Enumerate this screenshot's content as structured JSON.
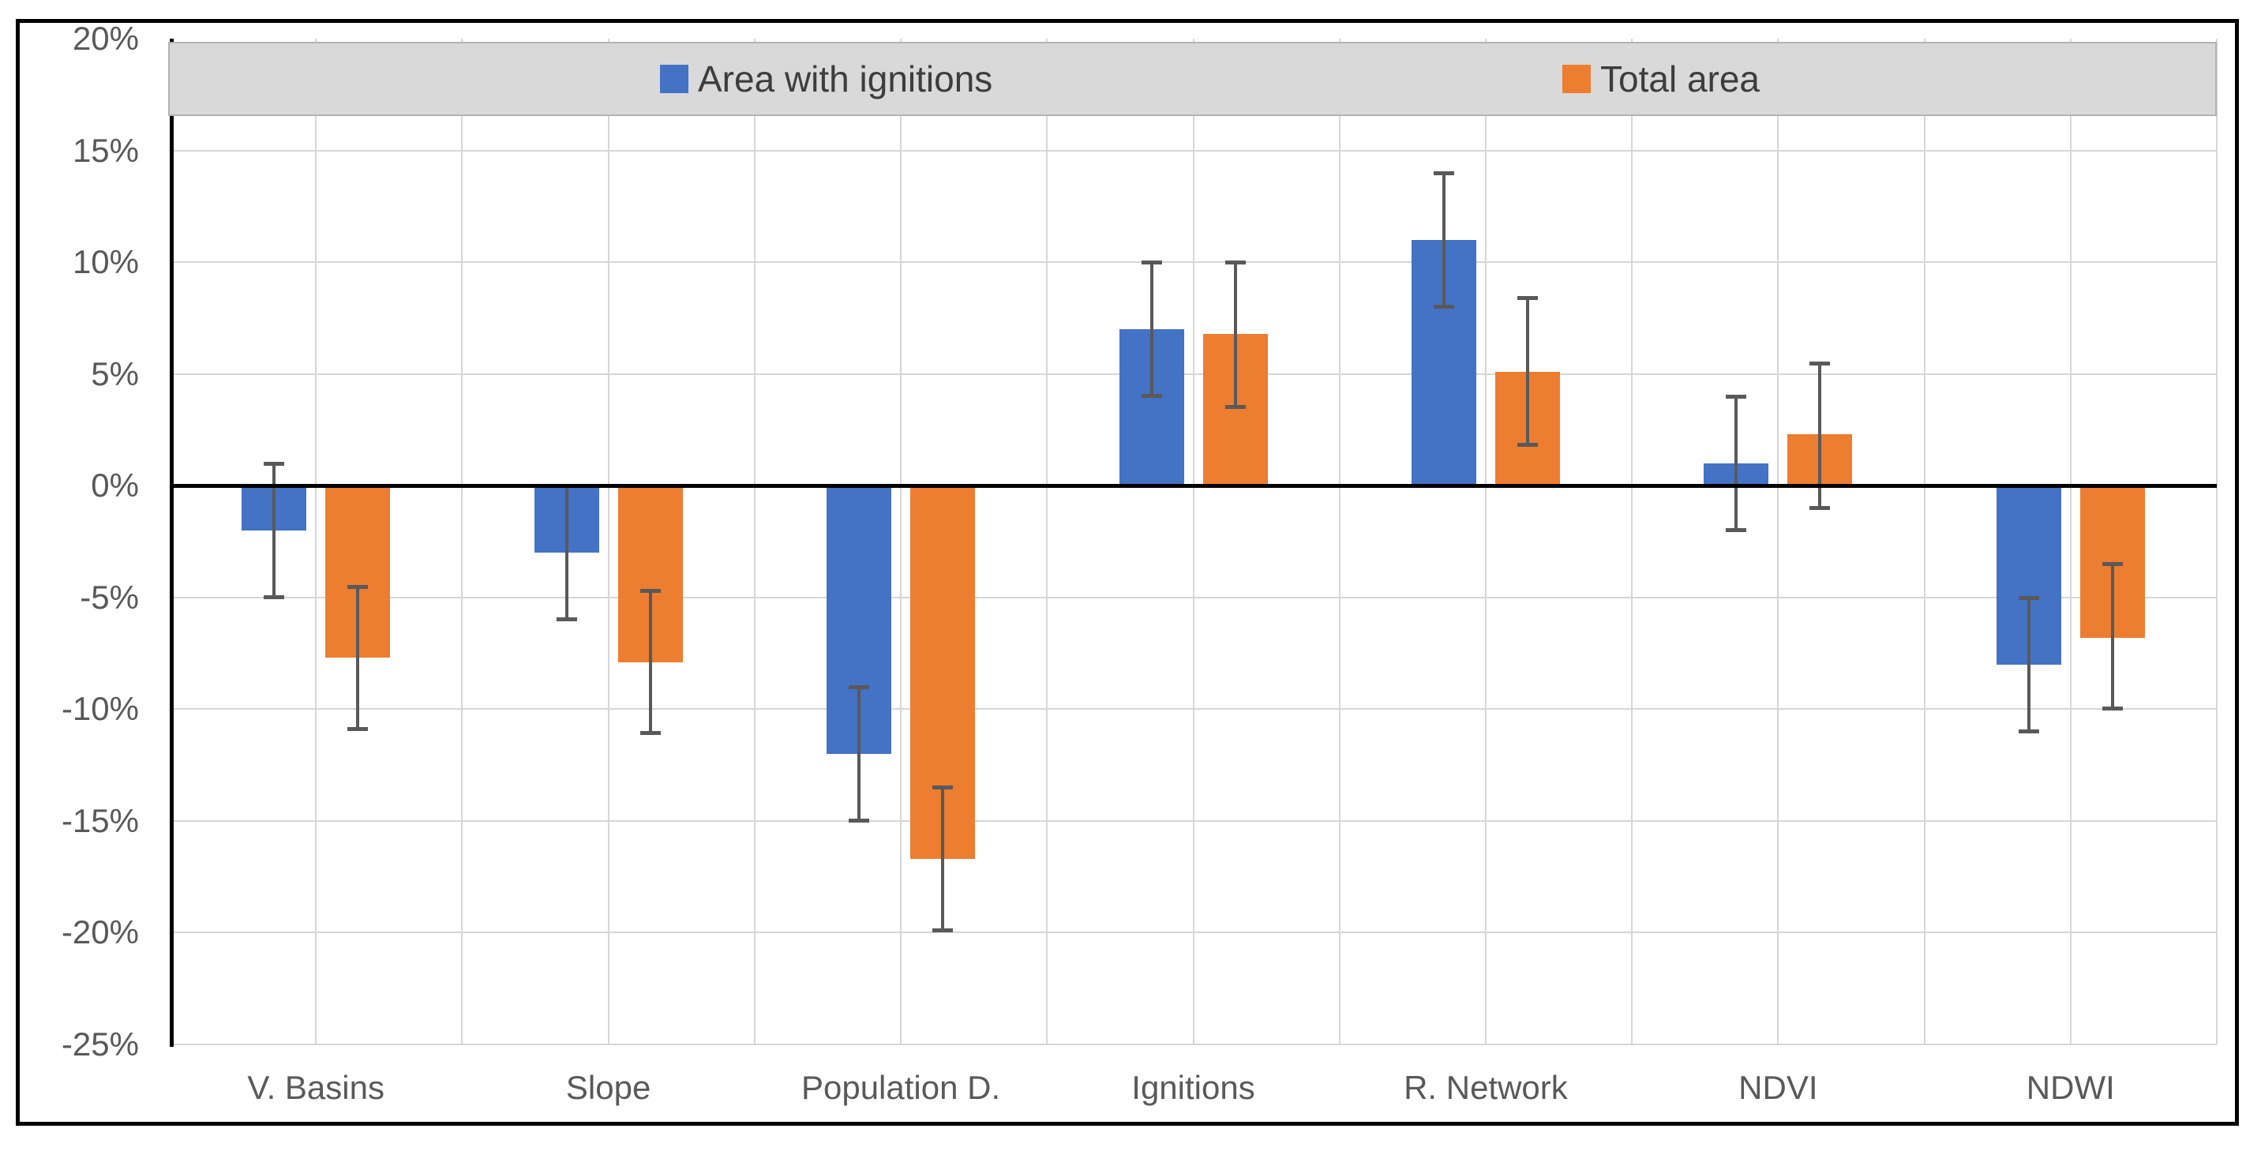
{
  "figure": {
    "border_color": "#000000",
    "background": "#ffffff"
  },
  "legend": {
    "background": "#d9d9d9",
    "items": [
      {
        "label": "Area with ignitions",
        "color": "#4472c4"
      },
      {
        "label": "Total area",
        "color": "#ed7d31"
      }
    ]
  },
  "axis": {
    "tick_labels": [
      "20%",
      "15%",
      "10%",
      "5%",
      "0%",
      "-5%",
      "-10%",
      "-15%",
      "-20%",
      "-25%"
    ],
    "label_color": "#595959",
    "gridline_color": "#d6d6d6",
    "axis_line_color": "#000000",
    "error_bar_color": "#595959"
  },
  "chart_data": {
    "type": "bar",
    "title": "",
    "xlabel": "",
    "ylabel": "",
    "tick_format": "percent",
    "ylim": [
      -25,
      20
    ],
    "y_ticks": [
      20,
      15,
      10,
      5,
      0,
      -5,
      -10,
      -15,
      -20,
      -25
    ],
    "grid": true,
    "legend_position": "top",
    "categories": [
      "V. Basins",
      "Slope",
      "Population D.",
      "Ignitions",
      "R. Network",
      "NDVI",
      "NDWI"
    ],
    "series": [
      {
        "name": "Area with ignitions",
        "color": "#4472c4",
        "values": [
          -2,
          -3,
          -12,
          7,
          11,
          1,
          -8
        ],
        "error_high": [
          1,
          0,
          -9,
          10,
          14,
          4,
          -5
        ],
        "error_low": [
          -5,
          -6,
          -15,
          4,
          8,
          -2,
          -11
        ]
      },
      {
        "name": "Total area",
        "color": "#ed7d31",
        "values": [
          -7.7,
          -7.9,
          -16.7,
          6.8,
          5.1,
          2.3,
          -6.8
        ],
        "error_high": [
          -4.5,
          -4.7,
          -13.5,
          10,
          8.4,
          5.5,
          -3.5
        ],
        "error_low": [
          -10.9,
          -11.1,
          -19.9,
          3.5,
          1.8,
          -1,
          -10
        ]
      }
    ]
  }
}
